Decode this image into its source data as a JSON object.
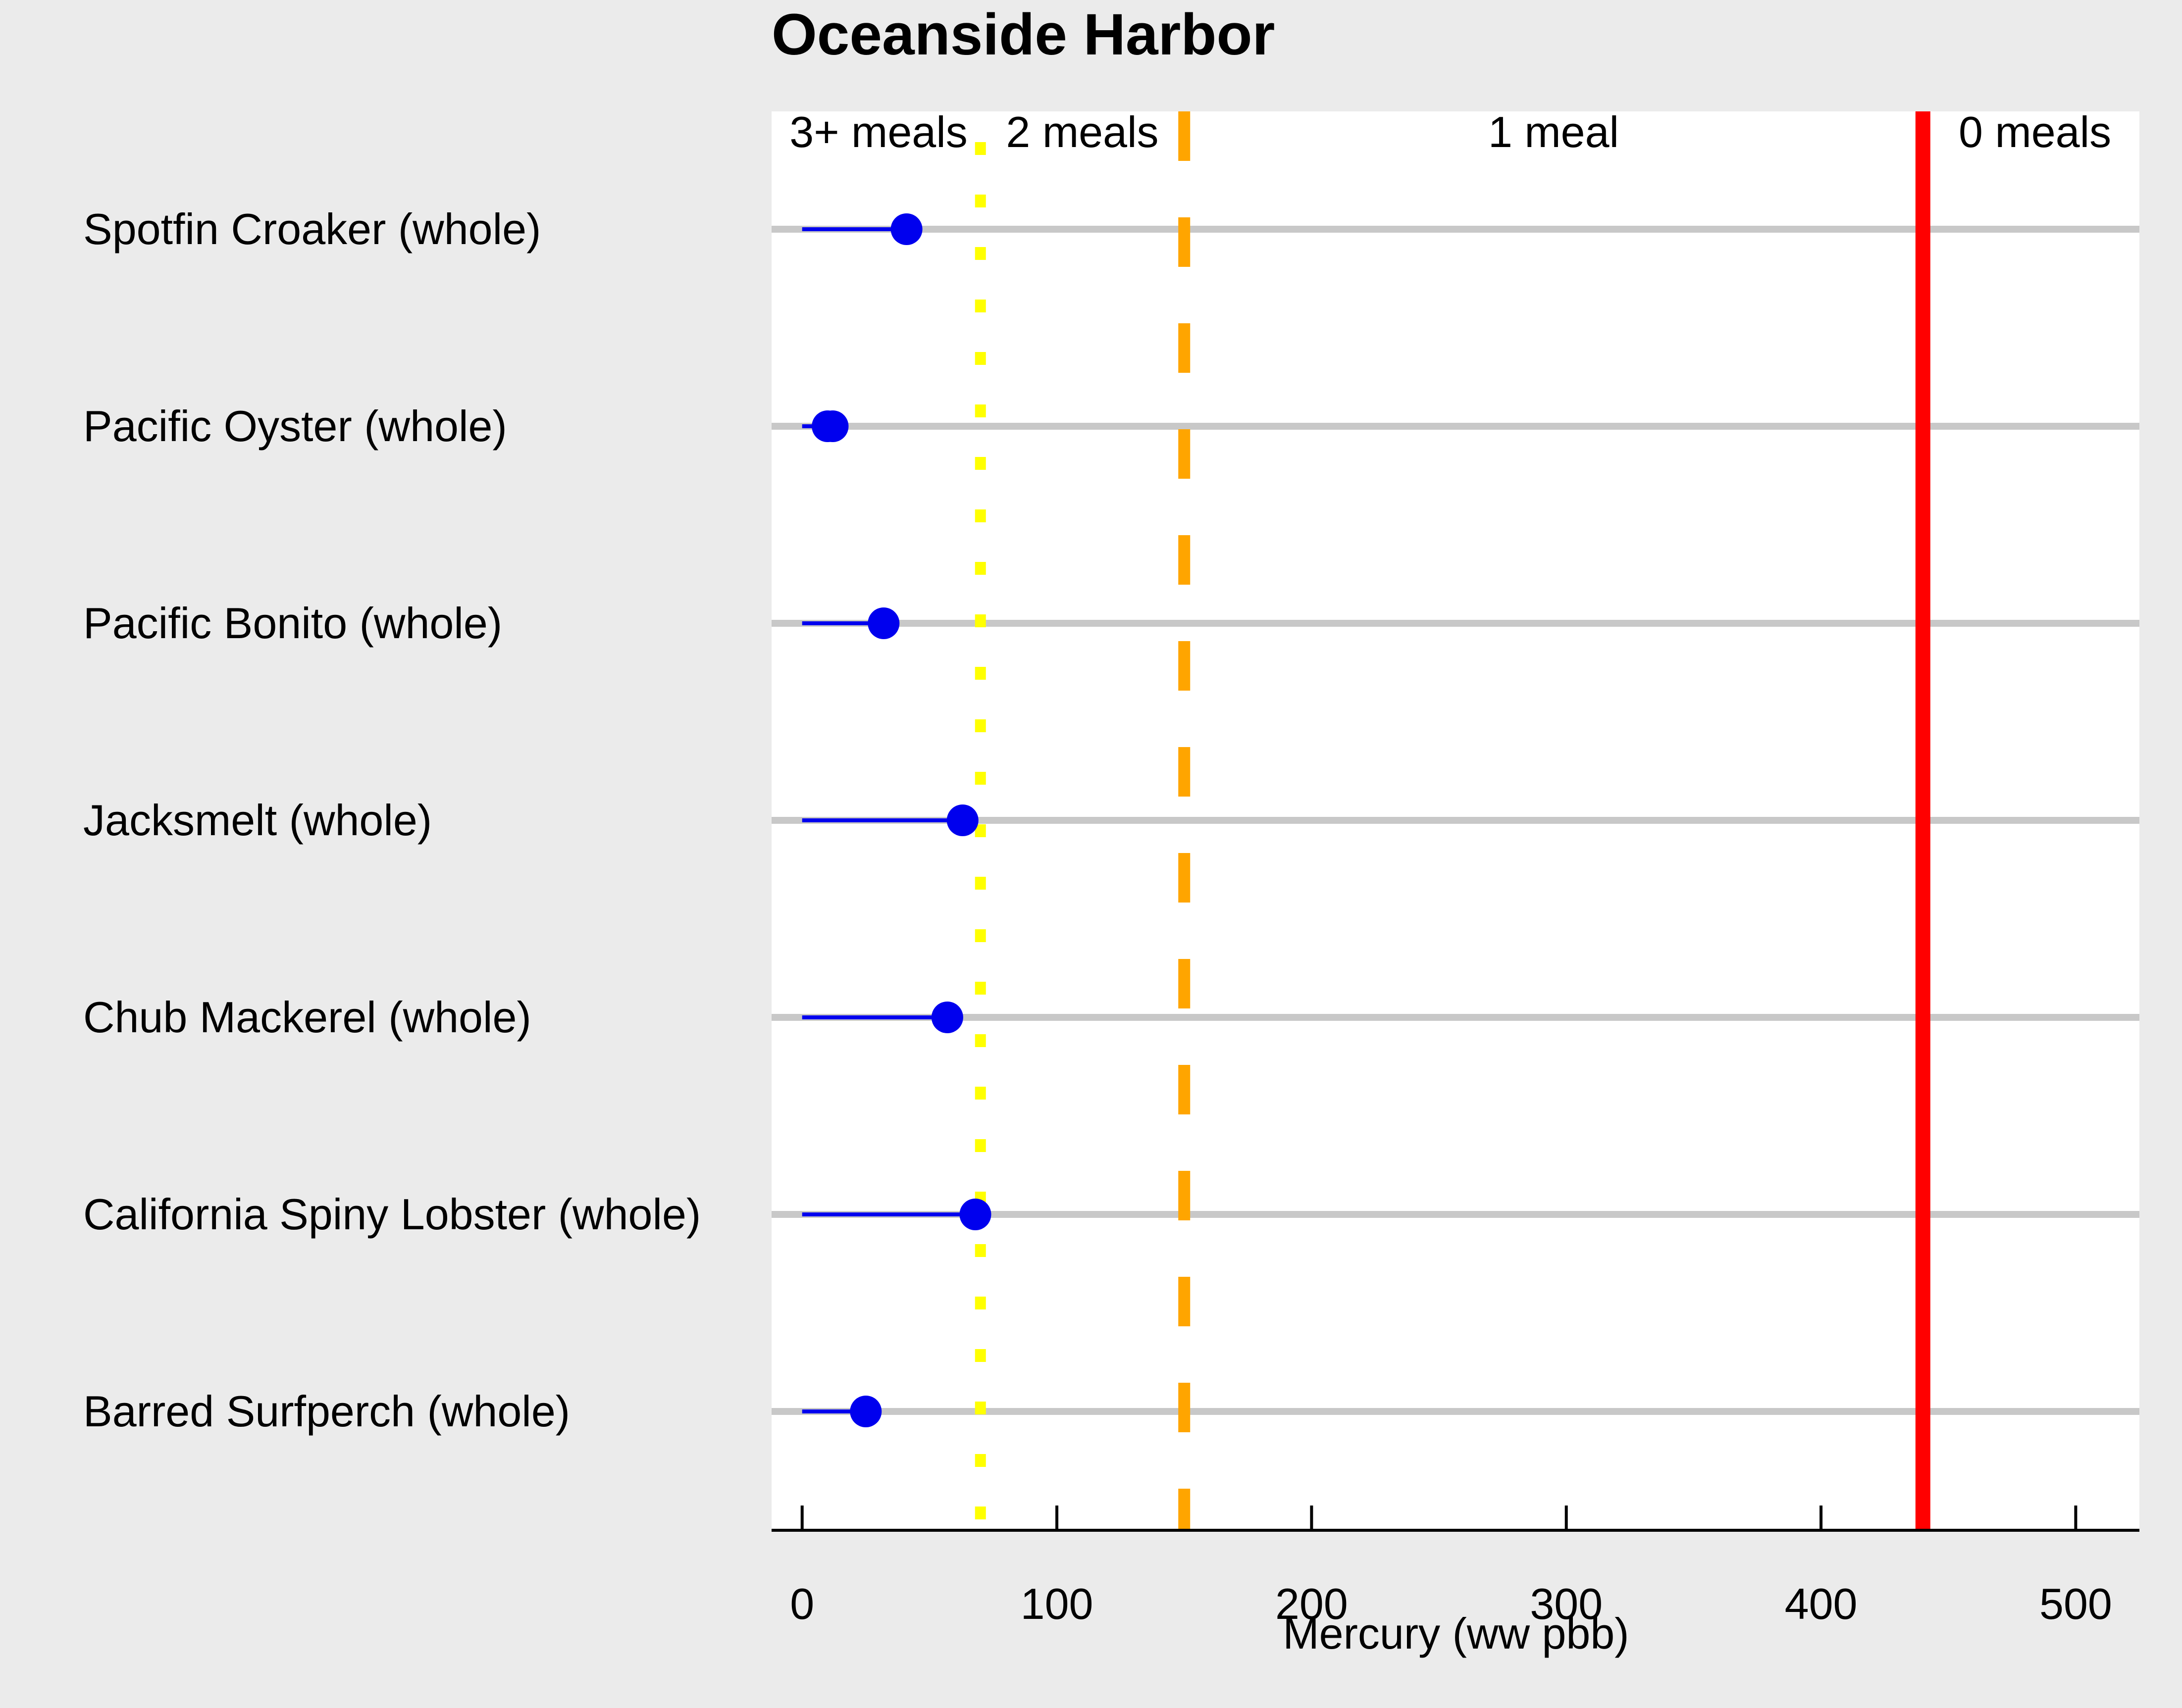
{
  "chart_data": {
    "type": "dot",
    "title": "Oceanside Harbor",
    "xlabel": "Mercury (ww pbb)",
    "ylabel": "",
    "xlim": [
      -12,
      525
    ],
    "xticks": [
      0,
      100,
      200,
      300,
      400,
      500
    ],
    "xtick_labels": [
      "0",
      "100",
      "200",
      "300",
      "400",
      "500"
    ],
    "categories": [
      "Spotfin Croaker (whole)",
      "Pacific Oyster (whole)",
      "Pacific Bonito (whole)",
      "Jacksmelt (whole)",
      "Chub Mackerel (whole)",
      "California Spiny Lobster (whole)",
      "Barred Surfperch (whole)"
    ],
    "series": [
      {
        "values": [
          41,
          12,
          32,
          63,
          57,
          68,
          25
        ],
        "color": "#0000ee",
        "style": "lollipop-from-zero"
      },
      {
        "values": [
          null,
          10,
          null,
          null,
          null,
          null,
          null
        ],
        "color": "#0000ee",
        "style": "point"
      }
    ],
    "thresholds": [
      {
        "x": 70,
        "color": "#ffff00",
        "style": "dotted"
      },
      {
        "x": 150,
        "color": "#ffa500",
        "style": "dashed"
      },
      {
        "x": 440,
        "color": "#ff0000",
        "style": "solid"
      }
    ],
    "zone_labels": [
      {
        "text": "3+ meals",
        "x": 30
      },
      {
        "text": "2 meals",
        "x": 110
      },
      {
        "text": "1 meal",
        "x": 295
      },
      {
        "text": "0 meals",
        "x": 484
      }
    ],
    "grid": "horizontal",
    "colors": {
      "background": "#ebebeb",
      "panel": "#ffffff",
      "gridline": "#c8c8c8",
      "axis": "#000000"
    }
  }
}
